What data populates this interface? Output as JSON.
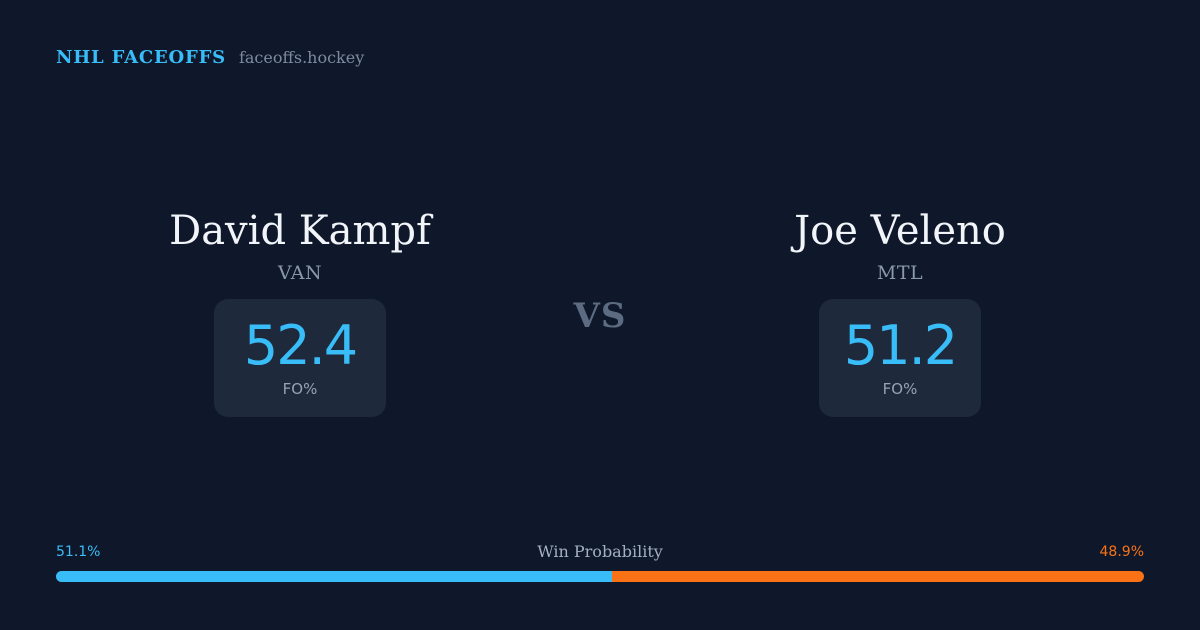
{
  "brand": {
    "title": "NHL FACEOFFS",
    "domain": "faceoffs.hockey"
  },
  "players": [
    {
      "name": "David Kampf",
      "team": "VAN",
      "fo_pct": "52.4",
      "stat_label": "FO%"
    },
    {
      "name": "Joe Veleno",
      "team": "MTL",
      "fo_pct": "51.2",
      "stat_label": "FO%"
    }
  ],
  "vs_label": "VS",
  "win_probability": {
    "title": "Win Probability",
    "left_label": "51.1%",
    "right_label": "48.9%",
    "left_value": 51.1,
    "right_value": 48.9
  },
  "colors": {
    "background": "#0f172a",
    "card": "#1e293b",
    "accent_blue": "#38bdf8",
    "accent_orange": "#f97316"
  }
}
